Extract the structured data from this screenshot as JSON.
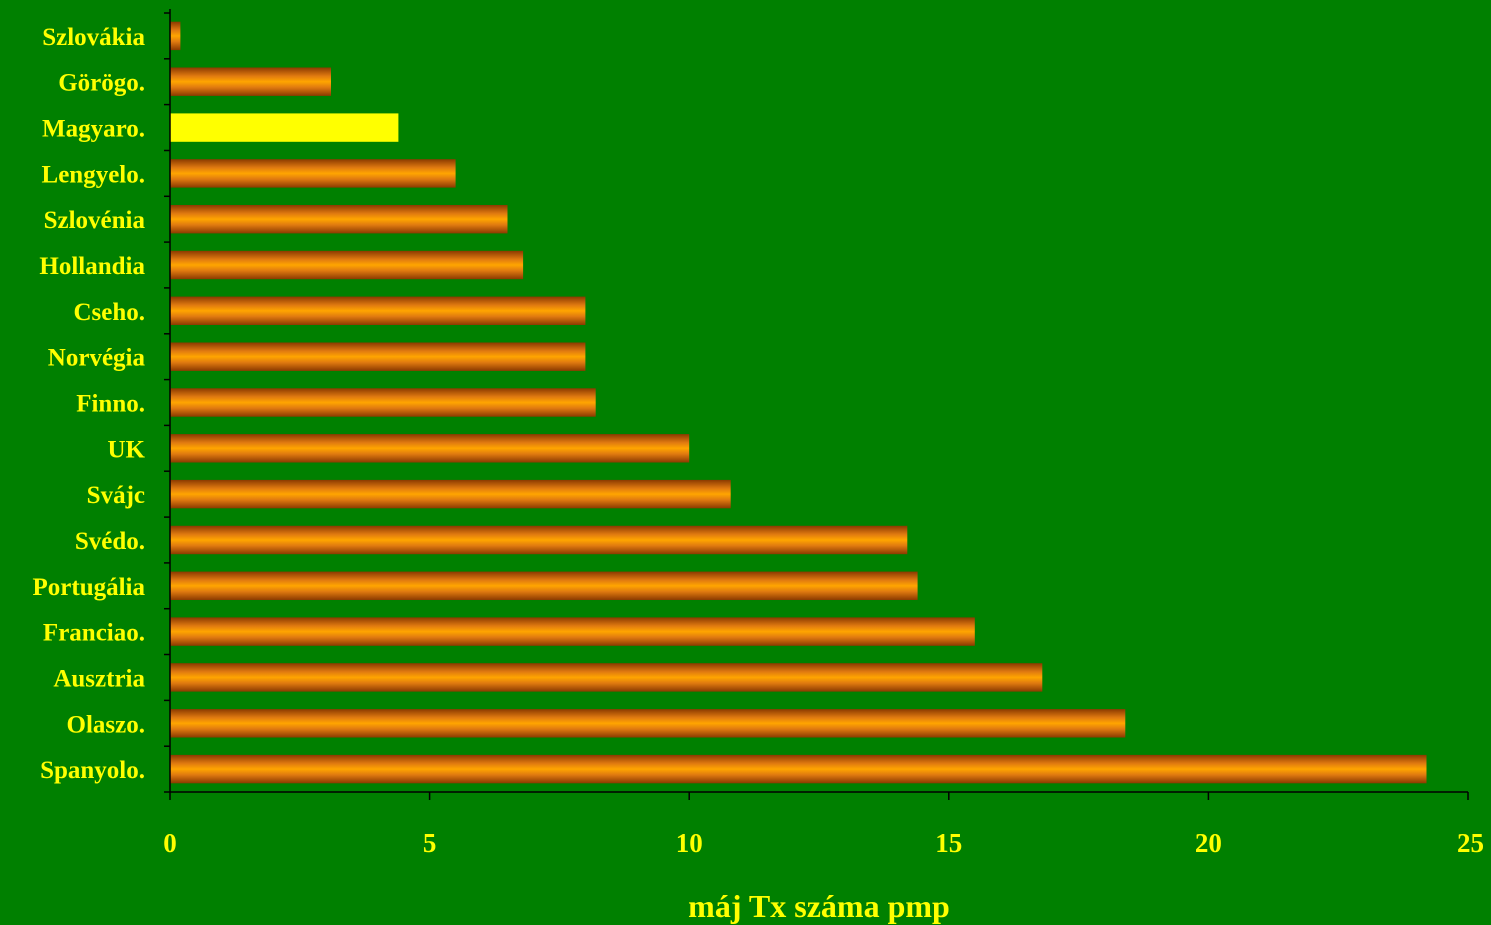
{
  "chart_data": {
    "type": "bar",
    "orientation": "horizontal",
    "title": "",
    "xlabel": "máj Tx száma pmp",
    "ylabel": "",
    "xlim": [
      0,
      25
    ],
    "xticks": [
      "0",
      "5",
      "10",
      "15",
      "20",
      "25"
    ],
    "grid": false,
    "legend": "none",
    "categories": [
      "Szlovákia",
      "Görögo.",
      "Magyaro.",
      "Lengyelo.",
      "Szlovénia",
      "Hollandia",
      "Cseho.",
      "Norvégia",
      "Finno.",
      "UK",
      "Svájc",
      "Svédo.",
      "Portugália",
      "Franciao.",
      "Ausztria",
      "Olaszo.",
      "Spanyolo."
    ],
    "values": [
      0.2,
      3.1,
      4.4,
      5.5,
      6.5,
      6.8,
      8.0,
      8.0,
      8.2,
      10.0,
      10.8,
      14.2,
      14.4,
      15.5,
      16.8,
      18.4,
      24.2
    ],
    "highlight_category": "Magyaro."
  },
  "colors": {
    "background": "#008000",
    "label_text": "#FFFF00",
    "axis_line": "#000000",
    "bar_highlight": "#FFFF00",
    "bar_edge": "#8B3A00",
    "bar_mid": "#E07A10",
    "bar_center": "#FFA500"
  }
}
